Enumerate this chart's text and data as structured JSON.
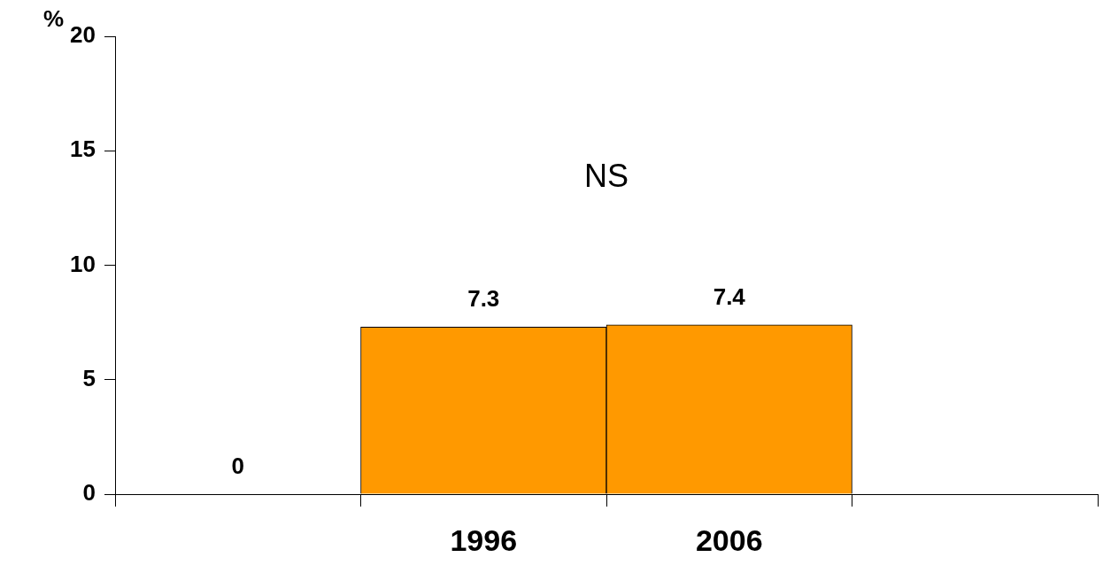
{
  "chart_data": {
    "type": "bar",
    "ylabel": "%",
    "categories": [
      null,
      "1996",
      "2006",
      null
    ],
    "values": [
      0,
      7.3,
      7.4,
      null
    ],
    "value_labels": [
      "0",
      "7.3",
      "7.4",
      null
    ],
    "color": "#ff9900",
    "ylim": [
      0,
      20
    ],
    "yticks": [
      0,
      5,
      10,
      15,
      20
    ],
    "grid": false,
    "annotations": [
      "NS"
    ]
  }
}
